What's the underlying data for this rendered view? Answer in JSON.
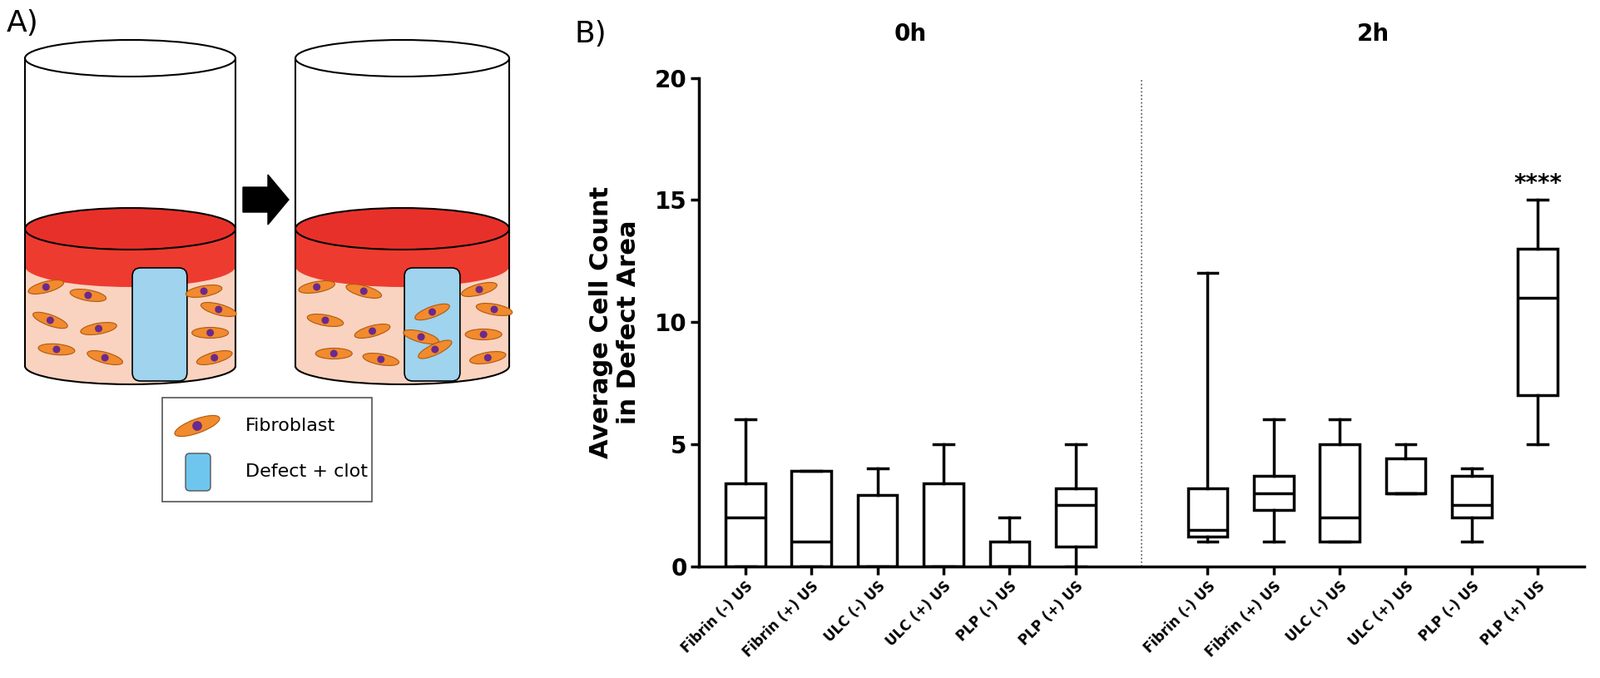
{
  "panel_a": {
    "label": "A)",
    "legend": [
      {
        "label": "Fibroblast"
      },
      {
        "label": "Defect + clot"
      }
    ]
  },
  "chart_data": {
    "type": "box",
    "panel_label": "B)",
    "ylabel": "Average Cell Count\nin Defect Area",
    "ylim": [
      0,
      20
    ],
    "yticks": [
      0,
      5,
      10,
      15,
      20
    ],
    "color": "#000000",
    "groups": [
      {
        "name": "0h",
        "categories": [
          "Fibrin (-) US",
          "Fibrin (+) US",
          "ULC (-) US",
          "ULC (+) US",
          "PLP (-) US",
          "PLP (+) US"
        ],
        "boxes": [
          {
            "min": 0,
            "q1": 0,
            "median": 2,
            "q3": 3.4,
            "max": 6
          },
          {
            "min": 0,
            "q1": 0,
            "median": 1,
            "q3": 3.9,
            "max": 3.9
          },
          {
            "min": 0,
            "q1": 0,
            "median": 0,
            "q3": 2.9,
            "max": 4
          },
          {
            "min": 0,
            "q1": 0,
            "median": 0,
            "q3": 3.4,
            "max": 5
          },
          {
            "min": 0,
            "q1": 0,
            "median": 0,
            "q3": 1,
            "max": 2
          },
          {
            "min": 0,
            "q1": 0.8,
            "median": 2.5,
            "q3": 3.2,
            "max": 5
          }
        ]
      },
      {
        "name": "2h",
        "categories": [
          "Fibrin (-) US",
          "Fibrin (+) US",
          "ULC (-) US",
          "ULC (+) US",
          "PLP (-) US",
          "PLP (+) US"
        ],
        "boxes": [
          {
            "min": 1,
            "q1": 1.2,
            "median": 1.5,
            "q3": 3.2,
            "max": 12
          },
          {
            "min": 1,
            "q1": 2.3,
            "median": 3,
            "q3": 3.7,
            "max": 6
          },
          {
            "min": 1,
            "q1": 1,
            "median": 2,
            "q3": 5,
            "max": 6
          },
          {
            "min": 3,
            "q1": 3,
            "median": 3,
            "q3": 4.4,
            "max": 5
          },
          {
            "min": 1,
            "q1": 2,
            "median": 2.5,
            "q3": 3.7,
            "max": 4
          },
          {
            "min": 5,
            "q1": 7,
            "median": 11,
            "q3": 13,
            "max": 15,
            "annotation": "****"
          }
        ]
      }
    ]
  }
}
